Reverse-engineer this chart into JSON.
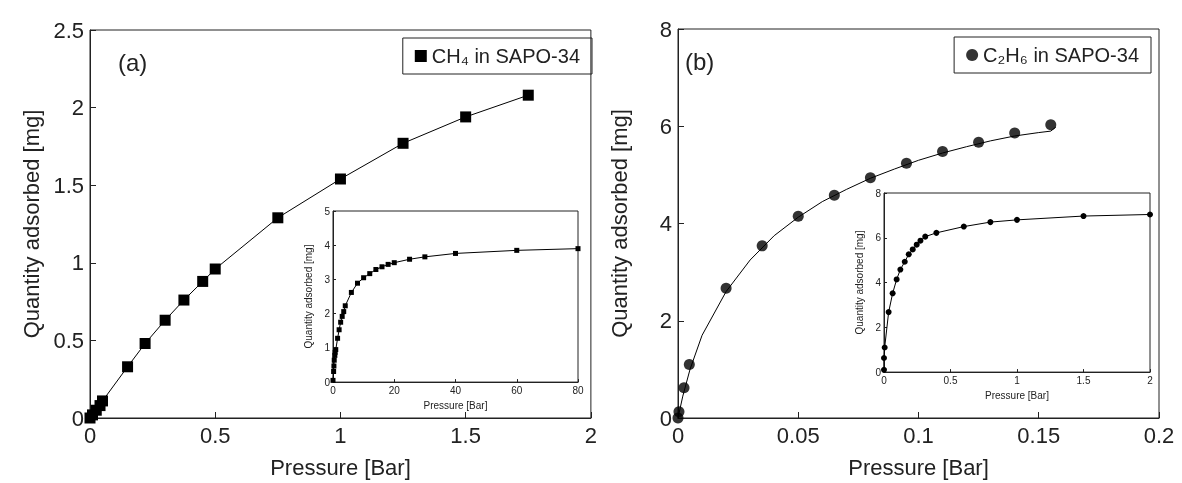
{
  "chart_data": [
    {
      "type": "line",
      "xlabel": "Pressure [Bar]",
      "ylabel": "Quantity adsorbed [mg]",
      "annotations": [
        "(a)"
      ],
      "xlim": [
        0,
        2
      ],
      "ylim": [
        0,
        2.5
      ],
      "xticks": [
        0,
        0.5,
        1,
        1.5,
        2
      ],
      "yticks": [
        0,
        0.5,
        1,
        1.5,
        2,
        2.5
      ],
      "grid": false,
      "legend": "top right",
      "marker": "square",
      "line_style": "solid",
      "series": [
        {
          "name": "CH₄ in SAPO-34",
          "color": "#000000",
          "x": [
            0,
            0.01,
            0.025,
            0.04,
            0.05,
            0.15,
            0.22,
            0.3,
            0.375,
            0.45,
            0.5,
            0.75,
            1,
            1.25,
            1.5,
            1.75
          ],
          "values": [
            0,
            0.02,
            0.05,
            0.08,
            0.11,
            0.33,
            0.48,
            0.63,
            0.76,
            0.88,
            0.96,
            1.29,
            1.54,
            1.77,
            1.94,
            2.08
          ]
        }
      ]
    },
    {
      "type": "line",
      "xlabel": "Pressure [Bar]",
      "ylabel": "Quantity adsorbed [mg]",
      "xlim": [
        0,
        80
      ],
      "ylim": [
        0,
        5
      ],
      "xticks": [
        0,
        20,
        40,
        60,
        80
      ],
      "yticks": [
        0,
        1,
        2,
        3,
        4,
        5
      ],
      "grid": false,
      "legend": false,
      "marker": "square",
      "line_style": "solid",
      "series": [
        {
          "color": "#000000",
          "x": [
            0,
            0.2,
            0.3,
            0.4,
            0.6,
            0.7,
            0.9,
            1.5,
            2,
            2.5,
            3,
            3.5,
            4,
            6,
            8,
            10,
            12,
            14,
            16,
            18,
            20,
            25,
            30,
            40,
            60,
            80
          ],
          "values": [
            0.05,
            0.31,
            0.47,
            0.64,
            0.78,
            0.87,
            0.95,
            1.28,
            1.53,
            1.75,
            1.92,
            2.06,
            2.23,
            2.62,
            2.89,
            3.05,
            3.17,
            3.29,
            3.37,
            3.44,
            3.49,
            3.59,
            3.66,
            3.76,
            3.85,
            3.9
          ]
        }
      ]
    },
    {
      "type": "scatter",
      "xlabel": "Pressure [Bar]",
      "ylabel": "Quantity adsorbed [mg]",
      "annotations": [
        "(b)"
      ],
      "xlim": [
        0,
        0.2
      ],
      "ylim": [
        0,
        8
      ],
      "xticks": [
        0,
        0.05,
        0.1,
        0.15,
        0.2
      ],
      "yticks": [
        0,
        2,
        4,
        6,
        8
      ],
      "grid": false,
      "legend": "top right",
      "marker": "circle",
      "series": [
        {
          "name": "C₂H₆ in SAPO-34",
          "color": "#000000",
          "x": [
            0,
            0.0004,
            0.0025,
            0.0047,
            0.02,
            0.035,
            0.05,
            0.065,
            0.08,
            0.095,
            0.11,
            0.125,
            0.14,
            0.155
          ],
          "values": [
            0,
            0.13,
            0.62,
            1.1,
            2.67,
            3.54,
            4.15,
            4.58,
            4.94,
            5.24,
            5.48,
            5.67,
            5.86,
            6.03
          ]
        },
        {
          "type": "line",
          "color": "#000000",
          "marker": "none",
          "line_style": "solid",
          "x": [
            0,
            0.002,
            0.005,
            0.01,
            0.02,
            0.03,
            0.04,
            0.05,
            0.06,
            0.07,
            0.08,
            0.09,
            0.1,
            0.11,
            0.12,
            0.13,
            0.14,
            0.15,
            0.155,
            0.157
          ],
          "values": [
            0,
            0.45,
            1.0,
            1.7,
            2.6,
            3.25,
            3.75,
            4.13,
            4.45,
            4.7,
            4.93,
            5.12,
            5.3,
            5.45,
            5.58,
            5.7,
            5.8,
            5.87,
            5.9,
            5.98
          ]
        }
      ]
    },
    {
      "type": "line",
      "xlabel": "Pressure [Bar]",
      "ylabel": "Quantity adsorbed [mg]",
      "xlim": [
        0,
        2
      ],
      "ylim": [
        0,
        8
      ],
      "xticks": [
        0,
        0.5,
        1,
        1.5,
        2
      ],
      "yticks": [
        0,
        2,
        4,
        6,
        8
      ],
      "grid": false,
      "legend": false,
      "marker": "circle",
      "line_style": "solid",
      "series": [
        {
          "color": "#000000",
          "x": [
            0,
            0,
            0.005,
            0.035,
            0.065,
            0.095,
            0.123,
            0.156,
            0.186,
            0.216,
            0.246,
            0.274,
            0.31,
            0.394,
            0.6,
            0.8,
            1,
            1.5,
            2
          ],
          "values": [
            0.1,
            0.63,
            1.1,
            2.68,
            3.52,
            4.14,
            4.58,
            4.93,
            5.26,
            5.48,
            5.69,
            5.87,
            6.05,
            6.22,
            6.5,
            6.7,
            6.8,
            6.97,
            7.04
          ]
        }
      ]
    }
  ]
}
